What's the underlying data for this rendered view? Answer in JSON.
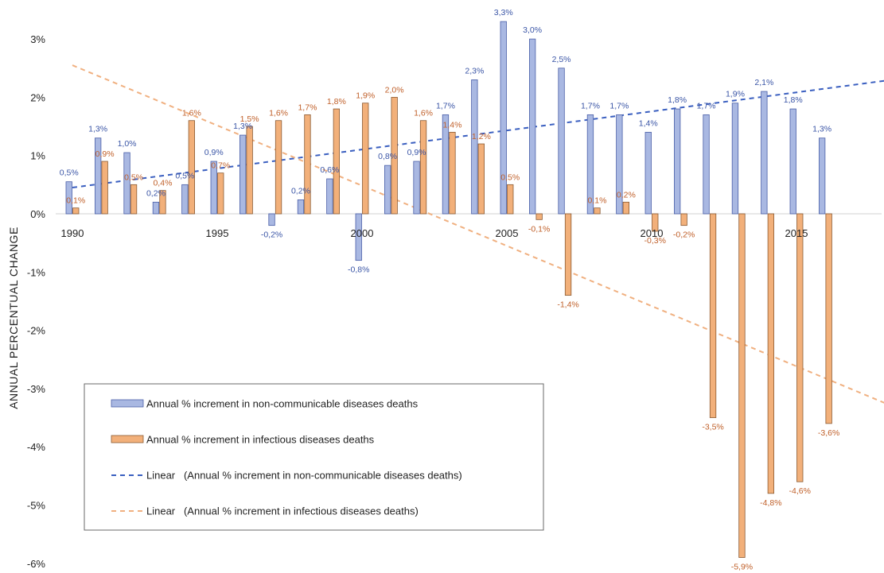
{
  "chart_data": {
    "type": "bar",
    "ylabel": "ANNUAL PERCENTUAL CHANGE",
    "ylim": [
      -6,
      3
    ],
    "y_ticks": [
      "3%",
      "2%",
      "1%",
      "0%",
      "-1%",
      "-2%",
      "-3%",
      "-4%",
      "-5%",
      "-6%"
    ],
    "x_ticks": [
      "1990",
      "1995",
      "2000",
      "2005",
      "2010",
      "2015"
    ],
    "categories": [
      1990,
      1991,
      1992,
      1993,
      1994,
      1995,
      1996,
      1997,
      1998,
      1999,
      2000,
      2001,
      2002,
      2003,
      2004,
      2005,
      2006,
      2007,
      2008,
      2009,
      2010,
      2011,
      2012,
      2013,
      2014,
      2015,
      2016
    ],
    "series": [
      {
        "name": "Annual % increment in non-communicable diseases deaths",
        "color": "#a9b8e2",
        "stroke": "#4a5fa8",
        "label_color": "#3a55a6",
        "values": [
          0.55,
          1.3,
          1.05,
          0.2,
          0.5,
          0.9,
          1.35,
          -0.2,
          0.24,
          0.6,
          -0.8,
          0.83,
          0.9,
          1.7,
          2.3,
          3.3,
          3.0,
          2.5,
          1.7,
          1.7,
          1.4,
          1.8,
          1.7,
          1.9,
          2.1,
          1.8,
          1.3
        ],
        "labels": [
          "0,5%",
          "1,3%",
          "1,0%",
          "0,2%",
          "0,5%",
          "0,9%",
          "1,3%",
          "-0,2%",
          "0,2%",
          "0,6%",
          "-0,8%",
          "0,8%",
          "0,9%",
          "1,7%",
          "2,3%",
          "3,3%",
          "3,0%",
          "2,5%",
          "1,7%",
          "1,7%",
          "1,4%",
          "1,8%",
          "1,7%",
          "1,9%",
          "2,1%",
          "1,8%",
          "1,3%"
        ]
      },
      {
        "name": "Annual % increment in infectious diseases deaths",
        "color": "#f2b07a",
        "stroke": "#8a5a32",
        "label_color": "#c0602a",
        "values": [
          0.1,
          0.9,
          0.5,
          0.4,
          1.6,
          0.7,
          1.5,
          1.6,
          1.7,
          1.8,
          1.9,
          2.0,
          1.6,
          1.4,
          1.2,
          0.5,
          -0.1,
          -1.4,
          0.1,
          0.2,
          -0.3,
          -0.2,
          -3.5,
          -5.9,
          -4.8,
          -4.6,
          -3.6
        ],
        "labels": [
          "0,1%",
          "0,9%",
          "0,5%",
          "0,4%",
          "1,6%",
          "0,7%",
          "1,5%",
          "1,6%",
          "1,7%",
          "1,8%",
          "1,9%",
          "2,0%",
          "1,6%",
          "1,4%",
          "1,2%",
          "0,5%",
          "-0,1%",
          "-1,4%",
          "0,1%",
          "0,2%",
          "-0,3%",
          "-0,2%",
          "-3,5%",
          "-5,9%",
          "-4,8%",
          "-4,6%",
          "-3,6%"
        ]
      }
    ],
    "trendlines": [
      {
        "name": "Linear (Annual % increment in non-communicable diseases deaths)",
        "color": "#3a5fc0",
        "start": [
          1990,
          0.45
        ],
        "end": [
          2018.3,
          2.3
        ]
      },
      {
        "name": "Linear (Annual % increment in infectious diseases deaths)",
        "color": "#f0b080",
        "start": [
          1990,
          2.55
        ],
        "end": [
          2018.3,
          -3.3
        ]
      }
    ],
    "legend": {
      "position": "bottom-left",
      "entries": [
        {
          "kind": "bar",
          "color": "#a9b8e2",
          "stroke": "#4a5fa8",
          "text": "Annual % increment in non-communicable diseases deaths"
        },
        {
          "kind": "bar",
          "color": "#f2b07a",
          "stroke": "#8a5a32",
          "text": "Annual % increment in infectious diseases deaths"
        },
        {
          "kind": "dash",
          "color": "#3a5fc0",
          "text": "Linear   (Annual % increment in non-communicable diseases deaths)"
        },
        {
          "kind": "dash",
          "color": "#f0b080",
          "text": "Linear   (Annual % increment in infectious diseases deaths)"
        }
      ]
    }
  }
}
